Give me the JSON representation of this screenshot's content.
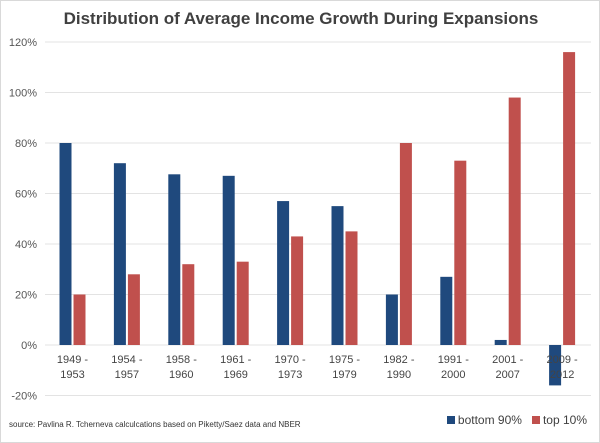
{
  "chart_data": {
    "type": "bar",
    "title": "Distribution of Average Income Growth During Expansions",
    "categories": [
      [
        "1949 -",
        "1953"
      ],
      [
        "1954 -",
        "1957"
      ],
      [
        "1958 -",
        "1960"
      ],
      [
        "1961 -",
        "1969"
      ],
      [
        "1970 -",
        "1973"
      ],
      [
        "1975 -",
        "1979"
      ],
      [
        "1982 -",
        "1990"
      ],
      [
        "1991 -",
        "2000"
      ],
      [
        "2001 -",
        "2007"
      ],
      [
        "2009 -",
        "2012"
      ]
    ],
    "series": [
      {
        "name": "bottom 90%",
        "color": "#1f497d",
        "values": [
          80,
          72,
          67.6,
          67,
          57,
          55,
          20,
          27,
          2,
          -16
        ]
      },
      {
        "name": "top 10%",
        "color": "#c0504d",
        "values": [
          20,
          28,
          32,
          33,
          43,
          45,
          80,
          73,
          98,
          116
        ]
      }
    ],
    "ylim": [
      -20,
      120
    ],
    "yticks": [
      "-20%",
      "0%",
      "20%",
      "40%",
      "60%",
      "80%",
      "100%",
      "120%"
    ],
    "grid": true,
    "legend": "bottom-right"
  },
  "source": "source: Pavlina R. Tcherneva calculcations based on Piketty/Saez data and NBER"
}
